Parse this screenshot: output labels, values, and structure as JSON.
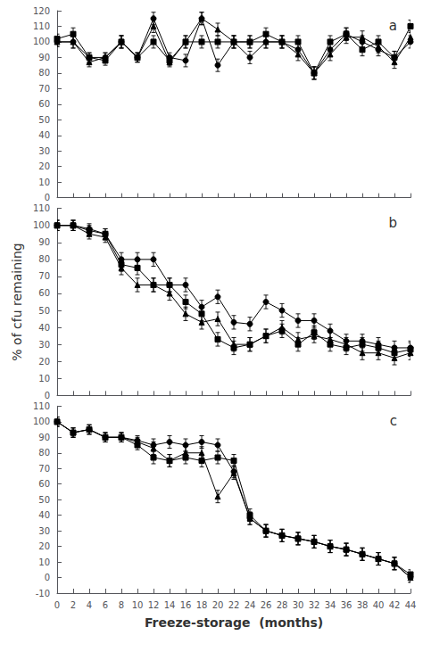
{
  "chart_data": [
    {
      "type": "line",
      "title": "a",
      "tick_labels": "y",
      "grid": false,
      "x": [
        0,
        2,
        4,
        6,
        8,
        10,
        12,
        14,
        16,
        18,
        20,
        22,
        24,
        26,
        28,
        30,
        32,
        34,
        36,
        38,
        40,
        42,
        44
      ],
      "xlim": [
        0,
        44
      ],
      "xticks": [
        0,
        2,
        4,
        6,
        8,
        10,
        12,
        14,
        16,
        18,
        20,
        22,
        24,
        26,
        28,
        30,
        32,
        34,
        36,
        38,
        40,
        42,
        44
      ],
      "ylim": [
        0,
        120
      ],
      "yticks": [
        0,
        10,
        20,
        30,
        40,
        50,
        60,
        70,
        80,
        90,
        100,
        110,
        120
      ],
      "series": [
        {
          "color": "black",
          "marker": "square",
          "values": [
            102,
            105,
            90,
            88,
            100,
            90,
            100,
            88,
            100,
            100,
            100,
            100,
            100,
            105,
            100,
            100,
            80,
            100,
            105,
            95,
            100,
            90,
            110
          ],
          "errors": [
            3,
            4,
            3,
            3,
            4,
            3,
            4,
            3,
            4,
            4,
            4,
            4,
            4,
            4,
            4,
            4,
            4,
            4,
            4,
            4,
            4,
            4,
            4
          ]
        },
        {
          "color": "black",
          "marker": "circle",
          "values": [
            100,
            100,
            90,
            90,
            100,
            90,
            115,
            90,
            88,
            115,
            85,
            100,
            90,
            100,
            100,
            95,
            80,
            95,
            105,
            100,
            95,
            90,
            100
          ],
          "errors": [
            3,
            4,
            3,
            3,
            4,
            3,
            4,
            3,
            4,
            4,
            4,
            4,
            4,
            4,
            4,
            4,
            4,
            4,
            4,
            4,
            4,
            4,
            4
          ]
        },
        {
          "color": "black",
          "marker": "triangle",
          "values": [
            100,
            100,
            87,
            90,
            100,
            90,
            110,
            87,
            100,
            115,
            108,
            100,
            100,
            100,
            100,
            92,
            80,
            92,
            103,
            103,
            97,
            87,
            103
          ],
          "errors": [
            3,
            4,
            3,
            3,
            4,
            3,
            4,
            3,
            4,
            4,
            4,
            4,
            4,
            4,
            4,
            4,
            4,
            4,
            4,
            4,
            4,
            4,
            4
          ]
        }
      ]
    },
    {
      "type": "line",
      "title": "b",
      "tick_labels": "y",
      "grid": false,
      "ylabel": "% of cfu remaining",
      "x": [
        0,
        2,
        4,
        6,
        8,
        10,
        12,
        14,
        16,
        18,
        20,
        22,
        24,
        26,
        28,
        30,
        32,
        34,
        36,
        38,
        40,
        42,
        44
      ],
      "xlim": [
        0,
        44
      ],
      "xticks": [
        0,
        2,
        4,
        6,
        8,
        10,
        12,
        14,
        16,
        18,
        20,
        22,
        24,
        26,
        28,
        30,
        32,
        34,
        36,
        38,
        40,
        42,
        44
      ],
      "ylim": [
        0,
        110
      ],
      "yticks": [
        0,
        10,
        20,
        30,
        40,
        50,
        60,
        70,
        80,
        90,
        100,
        110
      ],
      "series": [
        {
          "color": "black",
          "marker": "square",
          "values": [
            100,
            100,
            97,
            95,
            77,
            75,
            65,
            65,
            55,
            48,
            33,
            28,
            30,
            35,
            38,
            30,
            37,
            30,
            28,
            30,
            28,
            25,
            27
          ],
          "errors": [
            3,
            3,
            3,
            3,
            4,
            4,
            4,
            4,
            4,
            4,
            4,
            4,
            4,
            4,
            4,
            4,
            4,
            4,
            4,
            4,
            4,
            4,
            4
          ]
        },
        {
          "color": "black",
          "marker": "circle",
          "values": [
            100,
            100,
            98,
            95,
            80,
            80,
            80,
            65,
            65,
            52,
            58,
            43,
            42,
            55,
            50,
            44,
            44,
            38,
            32,
            32,
            30,
            28,
            28
          ],
          "errors": [
            3,
            3,
            3,
            3,
            4,
            4,
            4,
            4,
            4,
            4,
            4,
            4,
            4,
            4,
            4,
            4,
            4,
            4,
            4,
            4,
            4,
            4,
            4
          ]
        },
        {
          "color": "black",
          "marker": "triangle",
          "values": [
            100,
            100,
            95,
            93,
            75,
            65,
            65,
            60,
            48,
            43,
            45,
            30,
            30,
            35,
            40,
            33,
            35,
            33,
            30,
            25,
            25,
            22,
            25
          ],
          "errors": [
            3,
            3,
            3,
            3,
            4,
            4,
            4,
            4,
            4,
            4,
            4,
            4,
            4,
            4,
            4,
            4,
            4,
            4,
            4,
            4,
            4,
            4,
            4
          ]
        }
      ]
    },
    {
      "type": "line",
      "title": "c",
      "grid": false,
      "xlabel": "Freeze-storage  (months)",
      "x": [
        0,
        2,
        4,
        6,
        8,
        10,
        12,
        14,
        16,
        18,
        20,
        22,
        24,
        26,
        28,
        30,
        32,
        34,
        36,
        38,
        40,
        42,
        44
      ],
      "xlim": [
        0,
        44
      ],
      "xticks": [
        0,
        2,
        4,
        6,
        8,
        10,
        12,
        14,
        16,
        18,
        20,
        22,
        24,
        26,
        28,
        30,
        32,
        34,
        36,
        38,
        40,
        42,
        44
      ],
      "ylim": [
        -10,
        110
      ],
      "yticks": [
        -10,
        0,
        10,
        20,
        30,
        40,
        50,
        60,
        70,
        80,
        90,
        100,
        110
      ],
      "series": [
        {
          "color": "black",
          "marker": "square",
          "values": [
            100,
            93,
            95,
            90,
            90,
            85,
            77,
            75,
            77,
            75,
            77,
            75,
            40,
            30,
            27,
            25,
            23,
            20,
            18,
            15,
            12,
            9,
            2
          ],
          "errors": [
            3,
            3,
            3,
            3,
            3,
            3,
            4,
            4,
            4,
            4,
            4,
            4,
            4,
            4,
            4,
            4,
            4,
            4,
            4,
            4,
            4,
            4,
            3
          ]
        },
        {
          "color": "black",
          "marker": "circle",
          "values": [
            100,
            93,
            95,
            90,
            90,
            88,
            85,
            87,
            85,
            87,
            85,
            68,
            38,
            30,
            27,
            25,
            23,
            20,
            18,
            15,
            12,
            9,
            0
          ],
          "errors": [
            3,
            3,
            3,
            3,
            3,
            3,
            4,
            4,
            4,
            4,
            4,
            4,
            4,
            4,
            4,
            4,
            4,
            4,
            4,
            4,
            4,
            4,
            3
          ]
        },
        {
          "color": "black",
          "marker": "triangle",
          "values": [
            100,
            93,
            95,
            90,
            90,
            87,
            83,
            75,
            80,
            80,
            52,
            67,
            38,
            30,
            27,
            25,
            23,
            20,
            18,
            15,
            12,
            9,
            0
          ],
          "errors": [
            3,
            3,
            3,
            3,
            3,
            3,
            4,
            4,
            4,
            4,
            4,
            4,
            4,
            4,
            4,
            4,
            4,
            4,
            4,
            4,
            4,
            4,
            3
          ]
        }
      ]
    }
  ]
}
